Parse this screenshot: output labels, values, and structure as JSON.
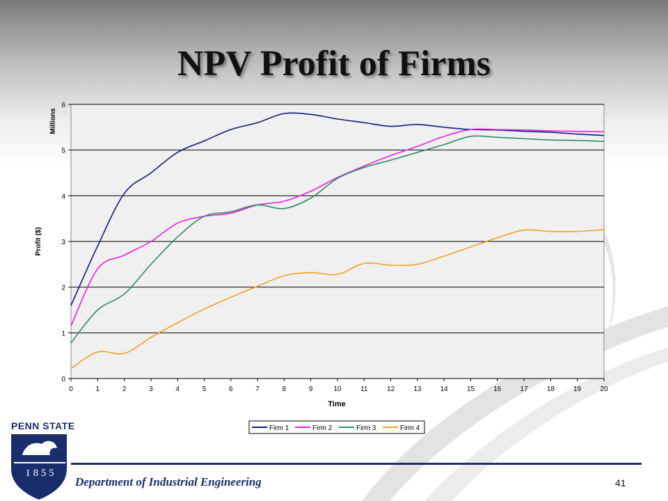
{
  "slide": {
    "title": "NPV Profit of Firms",
    "department": "Department of Industrial Engineering",
    "page_number": "41",
    "logo_text": "PENN STATE",
    "seal_year": "1 8 5 5"
  },
  "colors": {
    "firm1": "#0f1a7a",
    "firm2": "#e81fe8",
    "firm3": "#2e8b63",
    "firm4": "#f0a020",
    "brand_navy": "#1a2d6b"
  },
  "chart_data": {
    "type": "line",
    "title": "",
    "xlabel": "Time",
    "ylabel": "Profit ($)",
    "y_units_label": "Millions",
    "xlim": [
      0,
      20
    ],
    "ylim": [
      0,
      6
    ],
    "x_ticks": [
      "0",
      "1",
      "2",
      "3",
      "4",
      "5",
      "6",
      "7",
      "8",
      "9",
      "10",
      "11",
      "12",
      "13",
      "14",
      "15",
      "16",
      "17",
      "18",
      "19",
      "20"
    ],
    "y_ticks": [
      "0",
      "1",
      "2",
      "3",
      "4",
      "5",
      "6"
    ],
    "grid": "horizontal",
    "legend_position": "bottom",
    "x": [
      0,
      1,
      2,
      3,
      4,
      5,
      6,
      7,
      8,
      9,
      10,
      11,
      12,
      13,
      14,
      15,
      16,
      17,
      18,
      19,
      20
    ],
    "series": [
      {
        "name": "Firm 1",
        "values": [
          1.6,
          2.9,
          4.05,
          4.5,
          4.95,
          5.2,
          5.45,
          5.6,
          5.8,
          5.78,
          5.68,
          5.6,
          5.52,
          5.56,
          5.5,
          5.45,
          5.44,
          5.41,
          5.39,
          5.35,
          5.32
        ]
      },
      {
        "name": "Firm 2",
        "values": [
          1.15,
          2.4,
          2.7,
          3.0,
          3.4,
          3.55,
          3.62,
          3.8,
          3.88,
          4.1,
          4.4,
          4.65,
          4.88,
          5.08,
          5.3,
          5.45,
          5.45,
          5.44,
          5.42,
          5.41,
          5.4
        ]
      },
      {
        "name": "Firm 3",
        "values": [
          0.78,
          1.5,
          1.85,
          2.5,
          3.1,
          3.55,
          3.65,
          3.8,
          3.72,
          3.95,
          4.38,
          4.62,
          4.78,
          4.95,
          5.12,
          5.3,
          5.28,
          5.25,
          5.22,
          5.21,
          5.19
        ]
      },
      {
        "name": "Firm 4",
        "values": [
          0.22,
          0.58,
          0.55,
          0.9,
          1.22,
          1.52,
          1.78,
          2.02,
          2.25,
          2.32,
          2.28,
          2.52,
          2.48,
          2.5,
          2.68,
          2.88,
          3.08,
          3.25,
          3.22,
          3.22,
          3.26
        ]
      }
    ]
  }
}
